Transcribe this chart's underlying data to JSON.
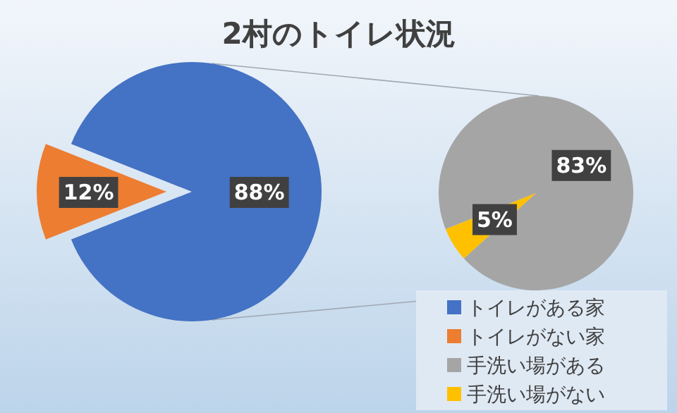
{
  "chart_data": [
    {
      "type": "pie",
      "title": "2村のトイレ状況",
      "categories": [
        "トイレがある家",
        "トイレがない家"
      ],
      "values": [
        88,
        12
      ],
      "colors": [
        "#4472c4",
        "#ed7d31"
      ],
      "value_labels": [
        "88%",
        "12%"
      ],
      "legend": "bottom right"
    },
    {
      "type": "pie",
      "categories": [
        "手洗い場がある",
        "手洗い場がない"
      ],
      "values": [
        83,
        5
      ],
      "colors": [
        "#a5a5a5",
        "#ffc000"
      ],
      "value_labels": [
        "83%",
        "5%"
      ],
      "legend": "bottom"
    }
  ]
}
